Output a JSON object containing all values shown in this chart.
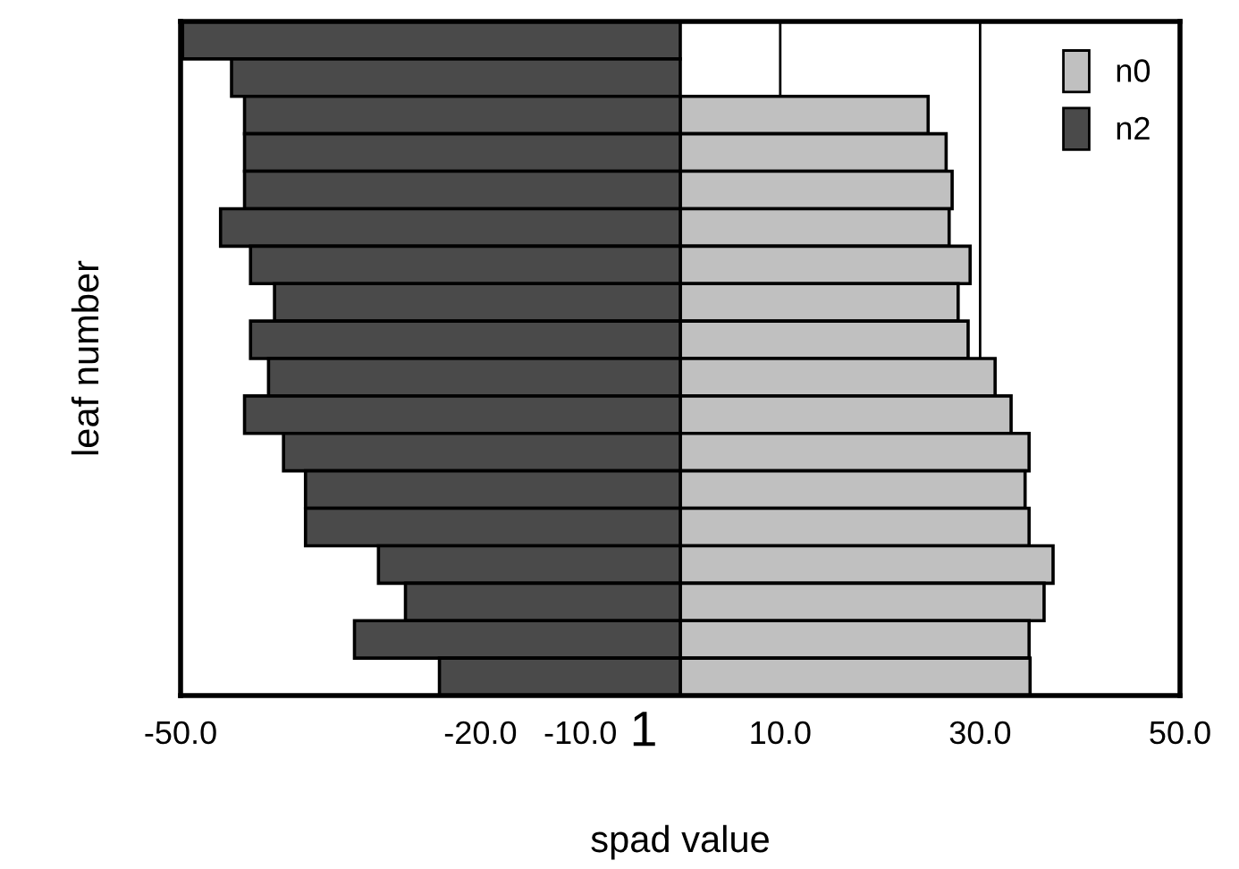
{
  "chart_data": {
    "type": "bar",
    "orientation": "horizontal",
    "xlabel": "spad value",
    "ylabel": "leaf number",
    "categories": [
      null,
      null,
      null,
      null,
      null,
      null,
      null,
      null,
      null,
      null,
      null,
      null,
      null,
      null,
      null,
      null,
      null,
      null
    ],
    "series": [
      {
        "name": "n0",
        "color": "#c0c0c0",
        "values": [
          null,
          null,
          24.8,
          26.6,
          27.2,
          26.9,
          29.0,
          27.8,
          28.8,
          31.5,
          33.1,
          34.9,
          34.5,
          34.9,
          37.3,
          36.4,
          34.9,
          35.0
        ]
      },
      {
        "name": "n2",
        "color": "#4a4a4a",
        "values": [
          -49.8,
          -44.9,
          -43.6,
          -43.6,
          -43.6,
          -46.0,
          -43.0,
          -40.6,
          -43.0,
          -41.2,
          -43.6,
          -39.7,
          -37.5,
          -37.5,
          -30.2,
          -27.5,
          -32.6,
          -24.1
        ]
      }
    ],
    "xlim": [
      -50,
      50
    ],
    "stacked": true,
    "xticks": [
      {
        "value": -50,
        "label": "-50.0"
      },
      {
        "value": -20,
        "label": "-20.0"
      },
      {
        "value": -10,
        "label": "-10.0"
      },
      {
        "value": 10,
        "label": "10.0"
      },
      {
        "value": 30,
        "label": "30.0"
      },
      {
        "value": 50,
        "label": "50.0"
      }
    ],
    "grid": "x",
    "legend": "top right",
    "tick_labels": "x",
    "annotations": [
      "1"
    ]
  }
}
